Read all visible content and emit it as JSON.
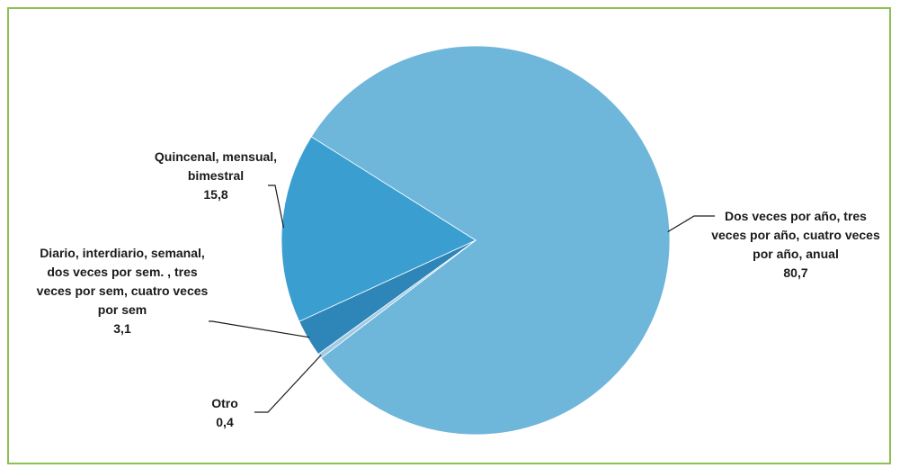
{
  "chart_data": {
    "type": "pie",
    "slices": [
      {
        "label": "Dos veces por año, tres veces por año, cuatro veces por año, anual",
        "value": 80.7,
        "value_label": "80,7",
        "color": "#6fb6db"
      },
      {
        "label": "Otro",
        "value": 0.4,
        "value_label": "0,4",
        "color": "#9ecbe3"
      },
      {
        "label": "Diario, interdiario, semanal, dos veces por sem. , tres veces por sem, cuatro veces por sem",
        "value": 3.1,
        "value_label": "3,1",
        "color": "#2e86b8"
      },
      {
        "label": "Quincenal, mensual, bimestral",
        "value": 15.8,
        "value_label": "15,8",
        "color": "#3a9fd0"
      }
    ],
    "frame_color": "#8cc152",
    "legend": "none"
  }
}
